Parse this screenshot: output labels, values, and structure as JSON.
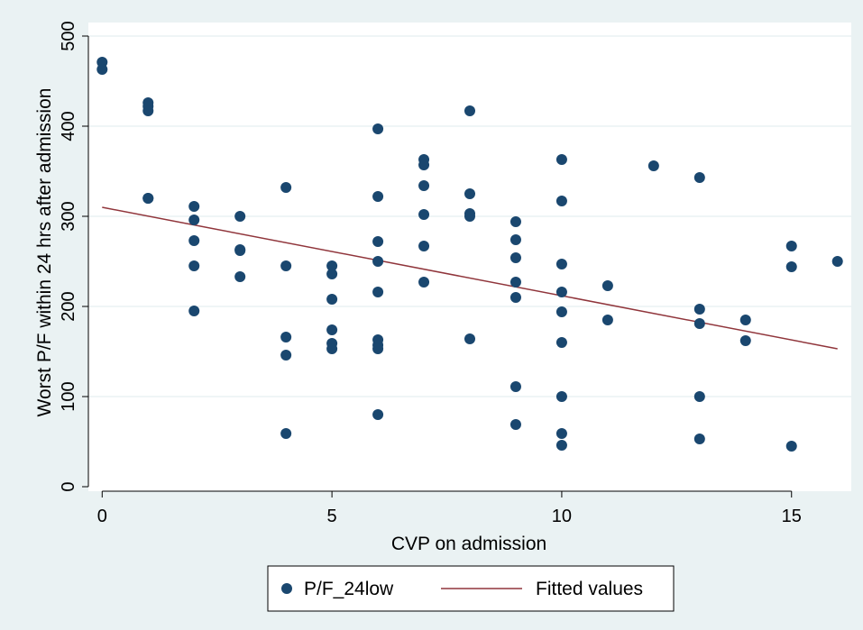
{
  "chart_data": {
    "type": "scatter",
    "xlabel": "CVP on admission",
    "ylabel": "Worst P/F within 24 hrs after admission",
    "xlim": [
      -0.3,
      16.3
    ],
    "ylim": [
      -5,
      515
    ],
    "xticks": [
      0,
      5,
      10,
      15
    ],
    "yticks": [
      0,
      100,
      200,
      300,
      400,
      500
    ],
    "grid": "horizontal",
    "legend_position": "bottom",
    "colors": {
      "outer_background": "#EAF2F3",
      "plot_background": "#FFFFFF",
      "grid": "#EAF2F3",
      "marker": "#1A476F",
      "fit_line": "#90353B"
    },
    "series": [
      {
        "name": "P/F_24low",
        "kind": "scatter",
        "points": [
          [
            0,
            471
          ],
          [
            0,
            463
          ],
          [
            1,
            426
          ],
          [
            1,
            422
          ],
          [
            1,
            417
          ],
          [
            1,
            320
          ],
          [
            1,
            320
          ],
          [
            2,
            311
          ],
          [
            2,
            296
          ],
          [
            2,
            273
          ],
          [
            2,
            245
          ],
          [
            2,
            195
          ],
          [
            3,
            300
          ],
          [
            3,
            263
          ],
          [
            3,
            262
          ],
          [
            3,
            233
          ],
          [
            4,
            332
          ],
          [
            4,
            245
          ],
          [
            4,
            166
          ],
          [
            4,
            146
          ],
          [
            4,
            59
          ],
          [
            5,
            245
          ],
          [
            5,
            236
          ],
          [
            5,
            208
          ],
          [
            5,
            174
          ],
          [
            5,
            159
          ],
          [
            5,
            153
          ],
          [
            6,
            397
          ],
          [
            6,
            322
          ],
          [
            6,
            272
          ],
          [
            6,
            250
          ],
          [
            6,
            216
          ],
          [
            6,
            163
          ],
          [
            6,
            157
          ],
          [
            6,
            153
          ],
          [
            6,
            80
          ],
          [
            7,
            363
          ],
          [
            7,
            357
          ],
          [
            7,
            334
          ],
          [
            7,
            302
          ],
          [
            7,
            267
          ],
          [
            7,
            227
          ],
          [
            8,
            417
          ],
          [
            8,
            325
          ],
          [
            8,
            303
          ],
          [
            8,
            300
          ],
          [
            8,
            164
          ],
          [
            9,
            294
          ],
          [
            9,
            274
          ],
          [
            9,
            254
          ],
          [
            9,
            227
          ],
          [
            9,
            210
          ],
          [
            9,
            111
          ],
          [
            9,
            69
          ],
          [
            10,
            363
          ],
          [
            10,
            317
          ],
          [
            10,
            247
          ],
          [
            10,
            216
          ],
          [
            10,
            194
          ],
          [
            10,
            160
          ],
          [
            10,
            100
          ],
          [
            10,
            59
          ],
          [
            10,
            46
          ],
          [
            11,
            223
          ],
          [
            11,
            185
          ],
          [
            12,
            356
          ],
          [
            13,
            343
          ],
          [
            13,
            197
          ],
          [
            13,
            181
          ],
          [
            13,
            100
          ],
          [
            13,
            53
          ],
          [
            14,
            185
          ],
          [
            14,
            162
          ],
          [
            15,
            267
          ],
          [
            15,
            244
          ],
          [
            15,
            45
          ],
          [
            16,
            250
          ]
        ]
      },
      {
        "name": "Fitted values",
        "kind": "line",
        "points": [
          [
            0,
            310
          ],
          [
            16,
            153
          ]
        ]
      }
    ]
  }
}
